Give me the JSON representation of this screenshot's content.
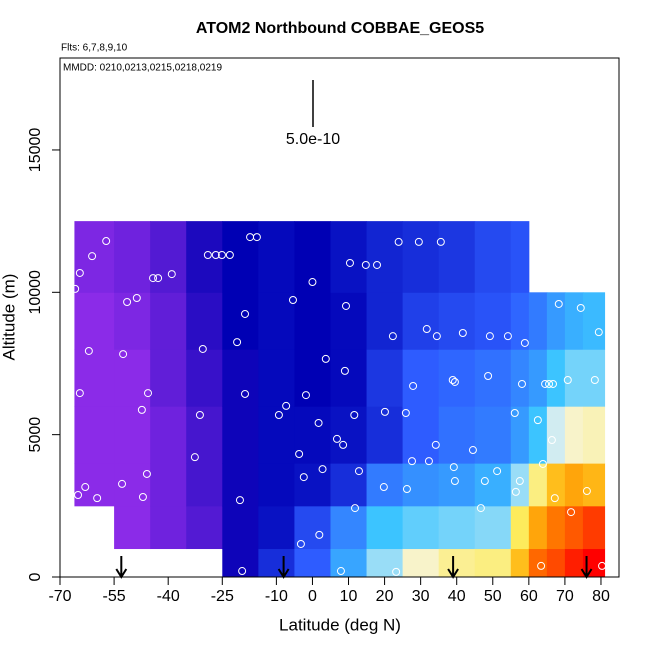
{
  "chart_data": {
    "type": "heatmap",
    "title": "ATOM2 Northbound COBBAE_GEOS5",
    "flights": "Flts: 6,7,8,9,10",
    "dates": "MMDD: 0210,0213,0215,0218,0219",
    "scale_label": "5.0e-10",
    "x_label": "Latitude (deg N)",
    "y_label": "Altitude (m)",
    "xlim": [
      -70,
      85
    ],
    "ylim": [
      0,
      18230
    ],
    "xticks": [
      -70,
      -55,
      -40,
      -25,
      -10,
      0,
      10,
      20,
      30,
      40,
      50,
      60,
      70,
      80
    ],
    "yticks": [
      0,
      5000,
      10000,
      15000
    ],
    "lat_edges": [
      -66,
      -55,
      -45,
      -35,
      -25,
      -15,
      -5,
      5,
      15,
      25,
      35,
      45,
      55,
      60,
      65,
      70,
      75,
      81
    ],
    "alt_edges": [
      0,
      1000,
      2500,
      4000,
      6000,
      8000,
      10000,
      12500
    ],
    "z": [
      [
        null,
        null,
        0,
        0,
        0,
        0,
        0.1
      ],
      [
        null,
        0,
        0,
        0,
        0,
        0.1,
        0.2
      ],
      [
        null,
        0.2,
        0.2,
        0.2,
        0.3,
        0.3,
        0.4
      ],
      [
        null,
        0.4,
        0.5,
        0.5,
        0.6,
        0.7,
        0.8
      ],
      [
        0.9,
        0.9,
        0.9,
        0.9,
        0.9,
        1,
        1
      ],
      [
        1.5,
        1.2,
        1.1,
        1.1,
        1.1,
        1.1,
        1.1
      ],
      [
        2,
        1.8,
        1.2,
        1.1,
        1,
        1,
        1
      ],
      [
        2.7,
        2.4,
        1.5,
        1.2,
        1.1,
        1.1,
        1.2
      ],
      [
        3.5,
        3,
        2.3,
        1.5,
        1.6,
        1.4,
        1.4
      ],
      [
        4.2,
        3.2,
        2.5,
        2,
        2,
        1.7,
        1.5
      ],
      [
        4.5,
        3.3,
        2.6,
        2.2,
        2.1,
        1.8,
        1.6
      ],
      [
        4.6,
        3.4,
        2.8,
        2.3,
        2.2,
        1.9,
        1.8
      ],
      [
        5.5,
        4.8,
        3.5,
        2.6,
        2.4,
        2.1,
        1.9
      ],
      [
        6.3,
        5.8,
        4.6,
        3,
        2.6,
        2.3,
        null
      ],
      [
        6.5,
        6.2,
        5.5,
        3.8,
        3,
        2.6,
        null
      ],
      [
        6.8,
        6.4,
        5.8,
        4.2,
        3.3,
        2.8,
        null
      ],
      [
        7,
        6.6,
        5.6,
        4.3,
        3.3,
        2.9,
        null
      ]
    ],
    "colormap": [
      "#8b2be8",
      "#0000b4",
      "#2e5cff",
      "#3cc4ff",
      "#f6f6ee",
      "#ffe838",
      "#ff9400",
      "#ff0000"
    ],
    "points": {
      "color": "#ffffff",
      "lat": [
        -57.2,
        -61.1,
        -64.5,
        -65.8,
        -62,
        -64.5,
        -63,
        -65,
        -59.7,
        -52.8,
        -47,
        -45.9,
        -47.3,
        -45.6,
        -52.5,
        -48.7,
        -51.4,
        -44.2,
        -42.8,
        -39,
        -30.4,
        -31.2,
        -32.6,
        -20.1,
        -19.5,
        -29,
        -26.8,
        -25.1,
        -22.9,
        -17.3,
        -15.4,
        -20.9,
        -18.7,
        -18.7,
        -9.3,
        -7.3,
        -5.4,
        -3.7,
        -2.4,
        -3.2,
        -1.8,
        0,
        1.7,
        1.9,
        2.8,
        3.7,
        6.8,
        8.5,
        9,
        9.3,
        10.4,
        11.6,
        11.8,
        12.9,
        14.8,
        17.9,
        20.1,
        19.8,
        22.3,
        23.9,
        25.9,
        26.2,
        27.9,
        27.6,
        29.5,
        31.7,
        32.3,
        34.5,
        35.6,
        34.2,
        38.9,
        39.5,
        39.2,
        39.5,
        41.7,
        44.5,
        46.7,
        47.8,
        48.7,
        49.2,
        51.2,
        54.2,
        56.1,
        57.5,
        56.4,
        58.1,
        58.9,
        62.5,
        63.9,
        64.5,
        65.6,
        66.7,
        66.4,
        67.2,
        68.3,
        70.8,
        71.7,
        74.4,
        76.1,
        78.3,
        79.4,
        80.3,
        63.4,
        23.2,
        7.9
      ],
      "alt": [
        11800,
        11270,
        10680,
        10120,
        7940,
        6460,
        3160,
        2880,
        2770,
        3270,
        2810,
        3620,
        5870,
        6460,
        7830,
        9800,
        9660,
        10500,
        10500,
        10640,
        8010,
        5690,
        4210,
        2700,
        210,
        11310,
        11310,
        11310,
        11310,
        11940,
        11940,
        8250,
        6430,
        9240,
        5690,
        6010,
        9730,
        4320,
        3510,
        1160,
        6390,
        10360,
        5410,
        1480,
        3790,
        7660,
        4850,
        4640,
        7240,
        9520,
        11030,
        5690,
        2420,
        3720,
        10960,
        10960,
        5800,
        3160,
        8460,
        11770,
        5760,
        3090,
        6710,
        4070,
        11770,
        8710,
        4070,
        8460,
        11770,
        4640,
        6920,
        6850,
        3860,
        3370,
        8570,
        4460,
        2420,
        3370,
        7060,
        8460,
        3720,
        8460,
        5760,
        3370,
        2990,
        6780,
        8220,
        5510,
        3970,
        6780,
        6780,
        6780,
        4810,
        2770,
        9590,
        6920,
        2280,
        9450,
        3020,
        6920,
        8600,
        390,
        390,
        180,
        210
      ]
    },
    "markers": [
      -53,
      -8,
      39,
      76
    ]
  }
}
